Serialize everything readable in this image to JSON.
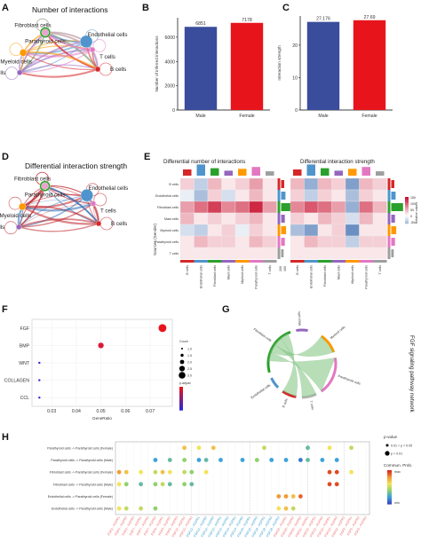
{
  "panels": {
    "A": {
      "letter": "A",
      "title": "Number of interactions",
      "nodes": [
        "Fibroblast cells",
        "Endothelial cells",
        "Mast cells",
        "B cells",
        "Myeloid cells",
        "T cells",
        "Parathyroid cells"
      ],
      "node_colors": [
        "#2ca02c",
        "#4f94cd",
        "#9467bd",
        "#d62728",
        "#ff9900",
        "#e377c2",
        "#e8a4c9"
      ]
    },
    "D": {
      "letter": "D",
      "title": "Differential interaction strength",
      "nodes": [
        "Fibroblast cells",
        "Endothelial cells",
        "Mast cells",
        "B cells",
        "Myeloid cells",
        "T cells",
        "Parathyroid cells"
      ]
    },
    "E": {
      "letter": "E",
      "title_left": "Differential number of interactions",
      "title_right": "Differential interaction strength",
      "y_axis_label": "Sources (Sender)",
      "rows": [
        "B cells",
        "Endothelial cells",
        "Fibroblast cells",
        "Mast cells",
        "Myeloid cells",
        "Parathyroid cells",
        "T cells"
      ],
      "cols": [
        "B cells",
        "Endothelial cells",
        "Fibroblast cells",
        "Mast cells",
        "Myeloid cells",
        "Parathyroid cells",
        "T cells"
      ],
      "side_axis_ticks": [
        "200",
        "400"
      ],
      "legend_title": "Relative values",
      "legend_ticks": [
        "150",
        "100",
        "50",
        "0",
        "-50"
      ],
      "left_heatmap_label": "200",
      "left_colorbar_ticks": [
        "200",
        "100",
        "0"
      ]
    },
    "G": {
      "letter": "G",
      "side_title": "FGF signaling pathway network",
      "nodes": [
        "Mast cells",
        "Myeloid cells",
        "Parathyroid cells",
        "T cells",
        "B cells",
        "Endothelial cells",
        "Fibroblast cells"
      ]
    },
    "H": {
      "letter": "H",
      "legend_pvalue_title": "p-value",
      "legend_pvalue_items": [
        "0.01 < p < 0.05",
        "p < 0.01"
      ],
      "legend_prob_title": "Commun. Prob.",
      "legend_prob_max": "max",
      "legend_prob_min": "min"
    }
  },
  "chart_data": [
    {
      "panel": "B",
      "type": "bar",
      "categories": [
        "Male",
        "Female"
      ],
      "values": [
        6851,
        7178
      ],
      "value_labels": [
        "6851",
        "7178"
      ],
      "ylabel": "Number of inferred interactions",
      "ylim": [
        0,
        7600
      ],
      "yticks": [
        0,
        2000,
        4000,
        6000
      ],
      "colors": [
        "#3a4c9c",
        "#e8141c"
      ],
      "letter": "B"
    },
    {
      "panel": "C",
      "type": "bar",
      "categories": [
        "Male",
        "Female"
      ],
      "values": [
        27.176,
        27.69
      ],
      "value_labels": [
        "27.176",
        "27.69"
      ],
      "ylabel": "Interaction strength",
      "ylim": [
        0,
        29
      ],
      "yticks": [
        0,
        10,
        20
      ],
      "colors": [
        "#3a4c9c",
        "#e8141c"
      ],
      "letter": "C"
    },
    {
      "panel": "F",
      "type": "scatter",
      "letter": "F",
      "categories": [
        "FGF",
        "BMP",
        "WNT",
        "COLLAGEN",
        "CCL"
      ],
      "x": [
        0.075,
        0.05,
        0.025,
        0.025,
        0.025
      ],
      "counts": [
        3.5,
        2.5,
        1.0,
        1.0,
        1.0
      ],
      "p_adjust_rank": [
        0.0,
        0.15,
        0.95,
        0.95,
        0.95
      ],
      "xlabel": "GeneRatio",
      "xticks": [
        0.03,
        0.04,
        0.05,
        0.06,
        0.07
      ],
      "xlim": [
        0.022,
        0.079
      ],
      "legend_count_title": "Count",
      "legend_count_values": [
        "1.0",
        "1.5",
        "2.0",
        "2.5",
        "3.0"
      ],
      "legend_color_title": "p.adjust"
    },
    {
      "panel": "H",
      "type": "scatter",
      "letter": "H",
      "rows": [
        "Parathyroid cells -> Parathyroid cells (Female)",
        "Parathyroid cells -> Parathyroid cells (Male)",
        "Fibroblast cells -> Parathyroid cells (Female)",
        "Fibroblast cells -> Parathyroid cells (Male)",
        "Endothelial cells -> Parathyroid cells (Female)",
        "Endothelial cells -> Parathyroid cells (Male)"
      ],
      "columns": [
        "FGF2 - FGFR1",
        "FGF2 - FGFR2",
        "FGF2 - FGFR3",
        "FGF7 - FGFR1",
        "FGF7 - FGFR2",
        "FGF7 - FGFR3",
        "FGF9 - FGFR1",
        "FGF9 - FGFR2",
        "FGF9 - FGFR3",
        "FGF10 - FGFR1",
        "FGF10 - FGFR2",
        "FGF12 - FGFR1",
        "FGF12 - FGFR2",
        "FGF12 - FGFR3",
        "FGF13 - FGFR1",
        "FGF13 - FGFR2",
        "FGF14 - FGFR1",
        "FGF14 - FGFR2",
        "FGF16 - FGFR1",
        "FGF16 - FGFR2",
        "FGF18 - FGFR1",
        "FGF18 - FGFR2",
        "FGF18 - FGFR3",
        "FGF20 - FGFR1",
        "FGF20 - FGFR2",
        "FGF20 - FGFR3",
        "FGF21 - FGFR1",
        "FGF22 - FGFR1",
        "FGF22 - FGFR2",
        "FGF23 - FGFR1",
        "FGF23 - FGFR2",
        "FGF23 - FGFR3",
        "FGF5 - FGFR1",
        "FGF5 - FGFR2",
        "FGF5 - FGFR3"
      ],
      "column_colors": [
        "#e66",
        "#e66",
        "#e66",
        "#e66",
        "#e66",
        "#e66",
        "#e66",
        "#e66",
        "#e66",
        "#e66",
        "#e66",
        "#39c",
        "#39c",
        "#39c",
        "#39c",
        "#39c",
        "#39c",
        "#39c",
        "#39c",
        "#39c",
        "#39c",
        "#39c",
        "#39c",
        "#e66",
        "#e66",
        "#e66",
        "#e66",
        "#e66",
        "#e66",
        "#e66",
        "#e66",
        "#e66",
        "#e66",
        "#e66",
        "#e66"
      ],
      "points": [
        [
          0,
          9,
          0.7
        ],
        [
          0,
          11,
          0.6
        ],
        [
          0,
          13,
          0.7
        ],
        [
          0,
          20,
          0.5
        ],
        [
          0,
          26,
          0.3
        ],
        [
          0,
          29,
          0.6
        ],
        [
          0,
          32,
          0.5
        ],
        [
          1,
          5,
          0.2
        ],
        [
          1,
          7,
          0.3
        ],
        [
          1,
          9,
          0.4
        ],
        [
          1,
          11,
          0.2
        ],
        [
          1,
          12,
          0.3
        ],
        [
          1,
          14,
          0.2
        ],
        [
          1,
          17,
          0.2
        ],
        [
          1,
          19,
          0.4
        ],
        [
          1,
          21,
          0.2
        ],
        [
          1,
          23,
          0.2
        ],
        [
          1,
          25,
          0.1
        ],
        [
          1,
          26,
          0.3
        ],
        [
          1,
          28,
          0.2
        ],
        [
          1,
          30,
          0.2
        ],
        [
          2,
          0,
          0.8
        ],
        [
          2,
          1,
          0.7
        ],
        [
          2,
          3,
          0.6
        ],
        [
          2,
          5,
          0.5
        ],
        [
          2,
          6,
          0.7
        ],
        [
          2,
          7,
          0.6
        ],
        [
          2,
          9,
          0.5
        ],
        [
          2,
          10,
          0.4
        ],
        [
          2,
          12,
          0.6
        ],
        [
          2,
          29,
          0.95
        ],
        [
          2,
          30,
          0.95
        ],
        [
          2,
          32,
          0.6
        ],
        [
          3,
          0,
          0.6
        ],
        [
          3,
          1,
          0.4
        ],
        [
          3,
          3,
          0.3
        ],
        [
          3,
          5,
          0.4
        ],
        [
          3,
          6,
          0.5
        ],
        [
          3,
          7,
          0.3
        ],
        [
          3,
          9,
          0.4
        ],
        [
          3,
          10,
          0.3
        ],
        [
          3,
          29,
          0.95
        ],
        [
          3,
          30,
          0.95
        ],
        [
          4,
          22,
          0.8
        ],
        [
          4,
          23,
          0.8
        ],
        [
          4,
          24,
          0.7
        ],
        [
          4,
          25,
          0.9
        ],
        [
          5,
          0,
          0.6
        ],
        [
          5,
          1,
          0.5
        ],
        [
          5,
          3,
          0.5
        ],
        [
          5,
          5,
          0.4
        ],
        [
          5,
          22,
          0.6
        ],
        [
          5,
          23,
          0.7
        ],
        [
          5,
          24,
          0.5
        ]
      ]
    },
    {
      "panel": "E",
      "type": "heatmap",
      "letter": "E",
      "matrices": [
        [
          [
            0.2,
            -0.3,
            0.3,
            0.1,
            0.2,
            0.4,
            0.1
          ],
          [
            -0.1,
            -0.4,
            0.2,
            -0.2,
            0.1,
            0.3,
            0.1
          ],
          [
            0.4,
            0.6,
            0.8,
            0.5,
            0.6,
            0.9,
            0.4
          ],
          [
            0.3,
            0.1,
            0.2,
            0.1,
            0.2,
            0.3,
            0.1
          ],
          [
            -0.2,
            -0.3,
            0.1,
            0.2,
            -0.1,
            0.2,
            0.1
          ],
          [
            0.1,
            0.3,
            0.2,
            0.2,
            0.1,
            0.3,
            0.2
          ],
          [
            0.1,
            0.1,
            0.1,
            0.1,
            0.1,
            0.1,
            0.1
          ]
        ],
        [
          [
            0.3,
            -0.5,
            0.3,
            0.2,
            -0.6,
            0.3,
            0.2
          ],
          [
            0.2,
            -0.3,
            0.2,
            0.1,
            -0.4,
            0.2,
            0.1
          ],
          [
            0.5,
            0.7,
            0.6,
            0.4,
            -0.5,
            0.6,
            0.3
          ],
          [
            0.2,
            0.1,
            0.3,
            0.2,
            -0.2,
            0.3,
            0.1
          ],
          [
            -0.4,
            -0.6,
            0.1,
            0.2,
            -0.7,
            0.1,
            0.1
          ],
          [
            0.1,
            0.3,
            0.2,
            0.2,
            -0.3,
            0.2,
            0.2
          ],
          [
            0.1,
            0.1,
            0.1,
            0.1,
            0.1,
            0.1,
            0.1
          ]
        ]
      ]
    }
  ]
}
